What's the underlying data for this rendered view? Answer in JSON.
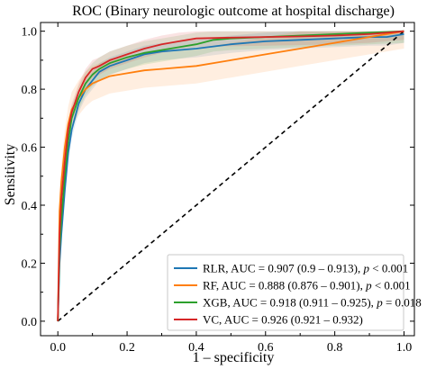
{
  "chart_data": {
    "type": "line",
    "title": "ROC (Binary neurologic outcome at hospital discharge)",
    "xlabel": "1 – specificity",
    "ylabel": "Sensitivity",
    "xlim": [
      -0.05,
      1.03
    ],
    "ylim": [
      -0.05,
      1.03
    ],
    "xticks": [
      0.0,
      0.2,
      0.4,
      0.6,
      0.8,
      1.0
    ],
    "yticks": [
      0.0,
      0.2,
      0.4,
      0.6,
      0.8,
      1.0
    ],
    "xtick_labels": [
      "0.0",
      "0.2",
      "0.4",
      "0.6",
      "0.8",
      "1.0"
    ],
    "ytick_labels": [
      "0.0",
      "0.2",
      "0.4",
      "0.6",
      "0.8",
      "1.0"
    ],
    "grid": false,
    "legend_position": "lower-right",
    "reference_line": {
      "x": [
        0,
        1
      ],
      "y": [
        0,
        1
      ],
      "style": "dashed",
      "color": "#000000"
    },
    "series": [
      {
        "name": "RLR",
        "legend_prefix": "RLR, AUC = 0.907 (0.9 – 0.913), ",
        "legend_p": "p",
        "legend_suffix": " < 0.001",
        "color": "#1f77b4",
        "x": [
          0,
          0.005,
          0.01,
          0.02,
          0.03,
          0.04,
          0.06,
          0.08,
          0.1,
          0.12,
          0.15,
          0.2,
          0.25,
          0.3,
          0.35,
          0.4,
          0.5,
          0.6,
          0.7,
          0.8,
          0.9,
          0.95,
          1.0
        ],
        "y": [
          0,
          0.2,
          0.3,
          0.45,
          0.58,
          0.66,
          0.75,
          0.8,
          0.83,
          0.86,
          0.88,
          0.9,
          0.92,
          0.93,
          0.935,
          0.94,
          0.955,
          0.965,
          0.97,
          0.975,
          0.98,
          0.98,
          0.99
        ],
        "band": 0.03
      },
      {
        "name": "RF",
        "legend_prefix": "RF, AUC = 0.888 (0.876 – 0.901), ",
        "legend_p": "p",
        "legend_suffix": " < 0.001",
        "color": "#ff7f0e",
        "x": [
          0,
          0.005,
          0.01,
          0.02,
          0.03,
          0.04,
          0.06,
          0.08,
          0.1,
          0.12,
          0.15,
          0.2,
          0.25,
          0.3,
          0.4,
          0.5,
          0.6,
          0.7,
          0.8,
          0.9,
          1.0
        ],
        "y": [
          0,
          0.38,
          0.48,
          0.6,
          0.68,
          0.73,
          0.77,
          0.8,
          0.82,
          0.83,
          0.845,
          0.855,
          0.865,
          0.87,
          0.88,
          0.9,
          0.92,
          0.94,
          0.96,
          0.98,
          1.0
        ],
        "band": 0.06
      },
      {
        "name": "XGB",
        "legend_prefix": "XGB, AUC = 0.918 (0.911 – 0.925), ",
        "legend_p": "p",
        "legend_suffix": " = 0.018",
        "color": "#2ca02c",
        "x": [
          0,
          0.005,
          0.01,
          0.02,
          0.03,
          0.04,
          0.06,
          0.08,
          0.1,
          0.12,
          0.15,
          0.2,
          0.25,
          0.3,
          0.35,
          0.4,
          0.45,
          0.5,
          0.6,
          0.7,
          0.8,
          0.9,
          1.0
        ],
        "y": [
          0,
          0.25,
          0.35,
          0.5,
          0.62,
          0.7,
          0.77,
          0.82,
          0.85,
          0.87,
          0.89,
          0.91,
          0.925,
          0.935,
          0.945,
          0.955,
          0.97,
          0.975,
          0.98,
          0.985,
          0.99,
          0.995,
          1.0
        ],
        "band": 0.04
      },
      {
        "name": "VC",
        "legend_prefix": "VC, AUC = 0.926 (0.921 – 0.932)",
        "legend_p": "",
        "legend_suffix": "",
        "color": "#d62728",
        "x": [
          0,
          0.005,
          0.01,
          0.02,
          0.03,
          0.04,
          0.06,
          0.08,
          0.1,
          0.12,
          0.15,
          0.2,
          0.25,
          0.3,
          0.35,
          0.4,
          0.5,
          0.6,
          0.7,
          0.8,
          0.9,
          0.95,
          1.0
        ],
        "y": [
          0,
          0.3,
          0.42,
          0.55,
          0.66,
          0.72,
          0.79,
          0.84,
          0.87,
          0.88,
          0.9,
          0.92,
          0.94,
          0.955,
          0.965,
          0.975,
          0.978,
          0.98,
          0.982,
          0.985,
          0.99,
          0.995,
          1.0
        ],
        "band": 0.03
      }
    ]
  }
}
